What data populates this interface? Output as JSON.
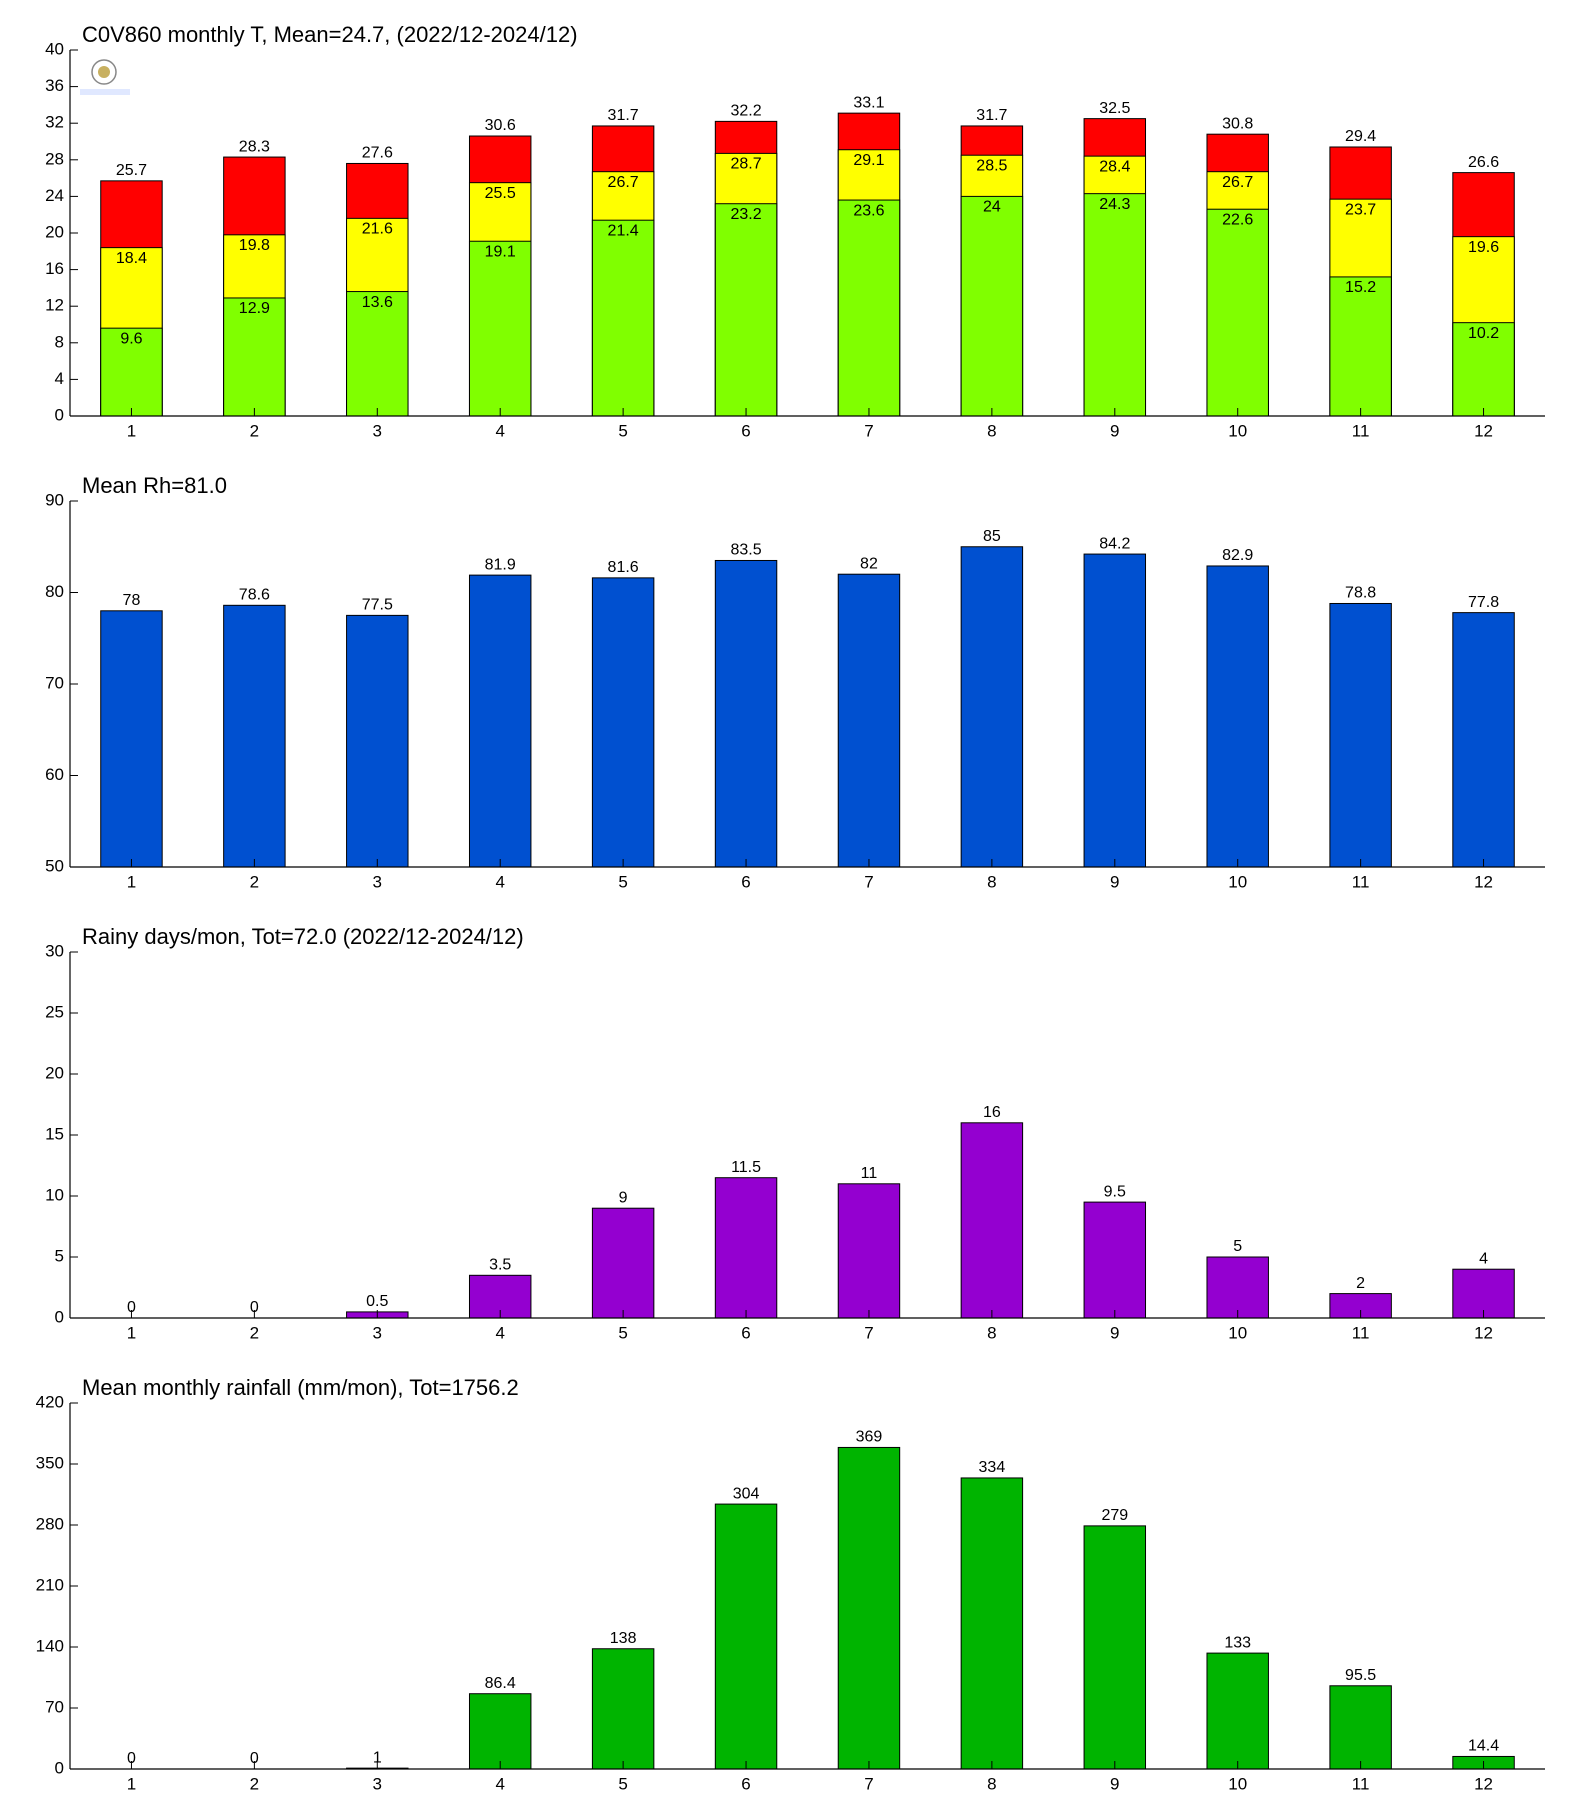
{
  "chart_data": [
    {
      "type": "bar",
      "title": "C0V860 monthly T, Mean=24.7, (2022/12-2024/12)",
      "categories": [
        1,
        2,
        3,
        4,
        5,
        6,
        7,
        8,
        9,
        10,
        11,
        12
      ],
      "series": [
        {
          "color": "#ff0000",
          "values": [
            25.7,
            28.3,
            27.6,
            30.6,
            31.7,
            32.2,
            33.1,
            31.7,
            32.5,
            30.8,
            29.4,
            26.6
          ]
        },
        {
          "color": "#ffff00",
          "values": [
            18.4,
            19.8,
            21.6,
            25.5,
            26.7,
            28.7,
            29.1,
            28.5,
            28.4,
            26.7,
            23.7,
            19.6
          ]
        },
        {
          "color": "#80ff00",
          "values": [
            9.6,
            12.9,
            13.6,
            19.1,
            21.4,
            23.2,
            23.6,
            24,
            24.3,
            22.6,
            15.2,
            10.2
          ]
        }
      ],
      "ylim": [
        0,
        40
      ],
      "yticks": [
        0,
        4,
        8,
        12,
        16,
        20,
        24,
        28,
        32,
        36,
        40
      ]
    },
    {
      "type": "bar",
      "title": "Mean Rh=81.0",
      "categories": [
        1,
        2,
        3,
        4,
        5,
        6,
        7,
        8,
        9,
        10,
        11,
        12
      ],
      "series": [
        {
          "color": "#0050d0",
          "values": [
            78,
            78.6,
            77.5,
            81.9,
            81.6,
            83.5,
            82,
            85,
            84.2,
            82.9,
            78.8,
            77.8
          ]
        }
      ],
      "ylim": [
        50,
        90
      ],
      "yticks": [
        50,
        60,
        70,
        80,
        90
      ]
    },
    {
      "type": "bar",
      "title": "Rainy days/mon, Tot=72.0 (2022/12-2024/12)",
      "categories": [
        1,
        2,
        3,
        4,
        5,
        6,
        7,
        8,
        9,
        10,
        11,
        12
      ],
      "series": [
        {
          "color": "#9400d0",
          "values": [
            0,
            0,
            0.5,
            3.5,
            9,
            11.5,
            11,
            16,
            9.5,
            5,
            2,
            4
          ]
        }
      ],
      "ylim": [
        0,
        30
      ],
      "yticks": [
        0,
        5,
        10,
        15,
        20,
        25,
        30
      ]
    },
    {
      "type": "bar",
      "title": "Mean monthly rainfall (mm/mon), Tot=1756.2",
      "categories": [
        1,
        2,
        3,
        4,
        5,
        6,
        7,
        8,
        9,
        10,
        11,
        12
      ],
      "series": [
        {
          "color": "#00b400",
          "values": [
            0,
            0,
            1,
            86.4,
            138,
            304,
            369,
            334,
            279,
            133,
            95.5,
            14.4
          ]
        }
      ],
      "ylim": [
        0,
        420
      ],
      "yticks": [
        0,
        70,
        140,
        210,
        280,
        350,
        420
      ]
    }
  ]
}
